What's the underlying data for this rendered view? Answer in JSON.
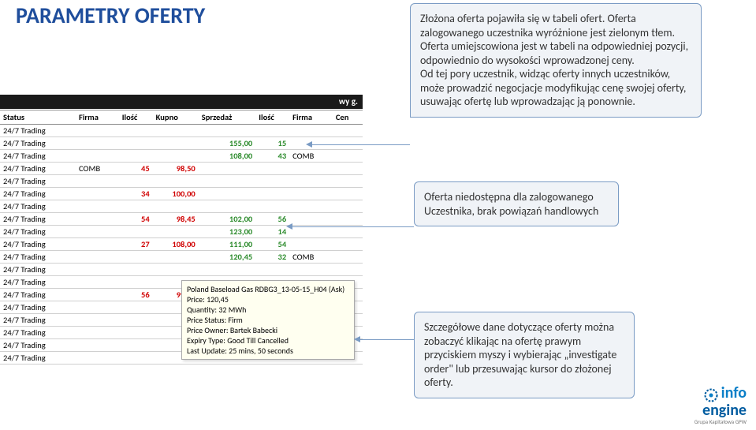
{
  "title": "PARAMETRY OFERTY",
  "black_bar_tail": "wy g.",
  "headers": [
    "Status",
    "Firma",
    "Ilość",
    "Kupno",
    "Sprzedaż",
    "Ilość",
    "Firma",
    "Cen"
  ],
  "rows": [
    {
      "status": "24/7 Trading",
      "firma": "",
      "ilosc_b": "",
      "kupno": "",
      "sprzedaz": "",
      "ilosc_s": "",
      "firma_s": ""
    },
    {
      "status": "24/7 Trading",
      "firma": "",
      "ilosc_b": "",
      "kupno": "",
      "sprzedaz": "155,00",
      "ilosc_s": "15",
      "firma_s": "",
      "sclass": "green",
      "iclass": "green"
    },
    {
      "status": "24/7 Trading",
      "firma": "",
      "ilosc_b": "",
      "kupno": "",
      "sprzedaz": "108,00",
      "ilosc_s": "43",
      "firma_s": "COMB",
      "sclass": "green",
      "iclass": "green"
    },
    {
      "status": "24/7 Trading",
      "firma": "COMB",
      "ilosc_b": "45",
      "kupno": "98,50",
      "sprzedaz": "",
      "ilosc_s": "",
      "firma_s": "",
      "bclass": "red",
      "ibclass": "red"
    },
    {
      "status": "24/7 Trading",
      "firma": "",
      "ilosc_b": "",
      "kupno": "",
      "sprzedaz": "",
      "ilosc_s": "",
      "firma_s": ""
    },
    {
      "status": "24/7 Trading",
      "firma": "",
      "ilosc_b": "34",
      "kupno": "100,00",
      "sprzedaz": "",
      "ilosc_s": "",
      "firma_s": "",
      "bclass": "red",
      "ibclass": "red"
    },
    {
      "status": "24/7 Trading",
      "firma": "",
      "ilosc_b": "",
      "kupno": "",
      "sprzedaz": "",
      "ilosc_s": "",
      "firma_s": ""
    },
    {
      "status": "24/7 Trading",
      "firma": "",
      "ilosc_b": "54",
      "kupno": "98,45",
      "sprzedaz": "102,00",
      "ilosc_s": "56",
      "firma_s": "",
      "bclass": "red",
      "ibclass": "red",
      "sclass": "green",
      "iclass": "green"
    },
    {
      "status": "24/7 Trading",
      "firma": "",
      "ilosc_b": "",
      "kupno": "",
      "sprzedaz": "123,00",
      "ilosc_s": "14",
      "firma_s": "",
      "sclass": "green",
      "iclass": "green"
    },
    {
      "status": "24/7 Trading",
      "firma": "",
      "ilosc_b": "27",
      "kupno": "108,00",
      "sprzedaz": "111,00",
      "ilosc_s": "54",
      "firma_s": "",
      "bclass": "red",
      "ibclass": "red",
      "sclass": "green",
      "iclass": "green"
    },
    {
      "status": "24/7 Trading",
      "firma": "",
      "ilosc_b": "",
      "kupno": "",
      "sprzedaz": "120,45",
      "ilosc_s": "32",
      "firma_s": "COMB",
      "sclass": "green",
      "iclass": "green"
    },
    {
      "status": "24/7 Trading",
      "firma": "",
      "ilosc_b": "",
      "kupno": "",
      "sprzedaz": "",
      "ilosc_s": "",
      "firma_s": ""
    },
    {
      "status": "24/7 Trading",
      "firma": "",
      "ilosc_b": "",
      "kupno": "",
      "sprzedaz": "",
      "ilosc_s": "",
      "firma_s": ""
    },
    {
      "status": "24/7 Trading",
      "firma": "",
      "ilosc_b": "56",
      "kupno": "99,97",
      "sprzedaz": "",
      "ilosc_s": "",
      "firma_s": "",
      "bclass": "red",
      "ibclass": "red"
    },
    {
      "status": "24/7 Trading",
      "firma": "",
      "ilosc_b": "",
      "kupno": "",
      "sprzedaz": "",
      "ilosc_s": "",
      "firma_s": ""
    },
    {
      "status": "24/7 Trading",
      "firma": "",
      "ilosc_b": "",
      "kupno": "",
      "sprzedaz": "",
      "ilosc_s": "",
      "firma_s": ""
    },
    {
      "status": "24/7 Trading",
      "firma": "",
      "ilosc_b": "",
      "kupno": "",
      "sprzedaz": "",
      "ilosc_s": "",
      "firma_s": ""
    },
    {
      "status": "24/7 Trading",
      "firma": "",
      "ilosc_b": "",
      "kupno": "",
      "sprzedaz": "",
      "ilosc_s": "",
      "firma_s": ""
    },
    {
      "status": "24/7 Trading",
      "firma": "",
      "ilosc_b": "",
      "kupno": "",
      "sprzedaz": "",
      "ilosc_s": "",
      "firma_s": ""
    }
  ],
  "tooltip": {
    "l1": "Poland Baseload Gas RDBG3_13-05-15_H04 (Ask)",
    "l2": "Price: 120,45",
    "l3": "Quantity: 32 MWh",
    "l4": "Price Status: Firm",
    "l5": "Price Owner: Bartek Babecki",
    "l6": "Expiry Type: Good Till Cancelled",
    "l7": "Last Update: 25 mins, 50 seconds"
  },
  "callout1": "Złożona oferta pojawiła się w tabeli ofert. Oferta zalogowanego uczestnika wyróżnione jest zielonym tłem.\nOferta umiejscowiona jest w tabeli na odpowiedniej pozycji, odpowiednio do wysokości wprowadzonej ceny.\nOd tej pory uczestnik, widząc oferty innych uczestników, może prowadzić negocjacje modyfikując cenę swojej oferty, usuwając ofertę lub wprowadzając ją ponownie.",
  "callout2": "Oferta niedostępna dla zalogowanego Uczestnika, brak powiązań handlowych",
  "callout3": "Szczegółowe dane dotyczące oferty można zobaczyć klikając na ofertę prawym przyciskiem myszy i wybierając „investigate order\" lub przesuwając kursor do złożonej oferty.",
  "logo": {
    "line1": "info",
    "line2": "engine",
    "sub": "Grupa Kapitałowa GPW"
  }
}
